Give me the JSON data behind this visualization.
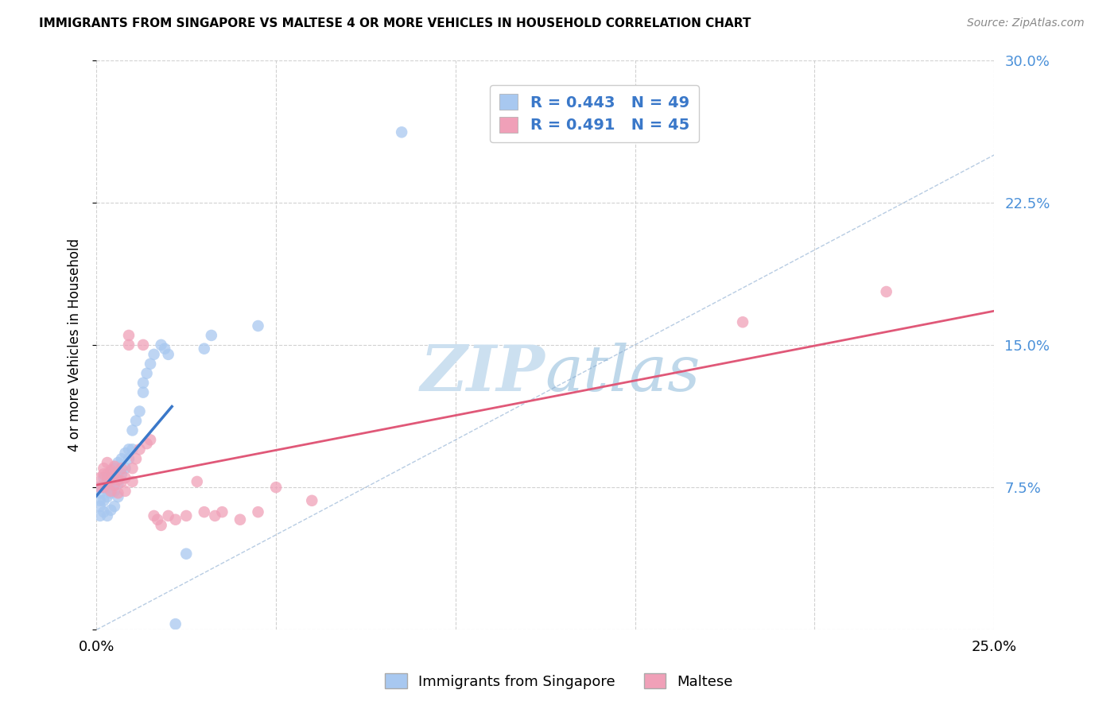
{
  "title": "IMMIGRANTS FROM SINGAPORE VS MALTESE 4 OR MORE VEHICLES IN HOUSEHOLD CORRELATION CHART",
  "source": "Source: ZipAtlas.com",
  "ylabel": "4 or more Vehicles in Household",
  "xlim": [
    0.0,
    0.25
  ],
  "ylim": [
    0.0,
    0.3
  ],
  "legend_labels": [
    "Immigrants from Singapore",
    "Maltese"
  ],
  "R_singapore": 0.443,
  "N_singapore": 49,
  "R_maltese": 0.491,
  "N_maltese": 45,
  "color_singapore": "#a8c8f0",
  "color_maltese": "#f0a0b8",
  "line_color_singapore": "#3a78c9",
  "line_color_maltese": "#e05878",
  "watermark_zip_color": "#c8dff0",
  "watermark_atlas_color": "#b0cce0",
  "sg_x": [
    0.001,
    0.001,
    0.001,
    0.001,
    0.001,
    0.002,
    0.002,
    0.002,
    0.002,
    0.003,
    0.003,
    0.003,
    0.003,
    0.004,
    0.004,
    0.004,
    0.004,
    0.005,
    0.005,
    0.005,
    0.005,
    0.006,
    0.006,
    0.006,
    0.006,
    0.007,
    0.007,
    0.008,
    0.008,
    0.009,
    0.009,
    0.01,
    0.01,
    0.011,
    0.012,
    0.013,
    0.013,
    0.014,
    0.015,
    0.016,
    0.018,
    0.019,
    0.02,
    0.022,
    0.025,
    0.03,
    0.032,
    0.045,
    0.085
  ],
  "sg_y": [
    0.06,
    0.065,
    0.068,
    0.072,
    0.075,
    0.062,
    0.068,
    0.075,
    0.08,
    0.06,
    0.07,
    0.075,
    0.08,
    0.063,
    0.072,
    0.078,
    0.083,
    0.065,
    0.073,
    0.079,
    0.085,
    0.07,
    0.077,
    0.082,
    0.088,
    0.082,
    0.09,
    0.085,
    0.093,
    0.09,
    0.095,
    0.095,
    0.105,
    0.11,
    0.115,
    0.125,
    0.13,
    0.135,
    0.14,
    0.145,
    0.15,
    0.148,
    0.145,
    0.003,
    0.04,
    0.148,
    0.155,
    0.16,
    0.262
  ],
  "mt_x": [
    0.001,
    0.001,
    0.002,
    0.002,
    0.002,
    0.003,
    0.003,
    0.003,
    0.004,
    0.004,
    0.004,
    0.005,
    0.005,
    0.005,
    0.006,
    0.006,
    0.007,
    0.007,
    0.008,
    0.008,
    0.009,
    0.009,
    0.01,
    0.01,
    0.011,
    0.012,
    0.013,
    0.014,
    0.015,
    0.016,
    0.017,
    0.018,
    0.02,
    0.022,
    0.025,
    0.028,
    0.03,
    0.033,
    0.035,
    0.04,
    0.045,
    0.05,
    0.06,
    0.18,
    0.22
  ],
  "mt_y": [
    0.075,
    0.08,
    0.075,
    0.082,
    0.085,
    0.078,
    0.082,
    0.088,
    0.073,
    0.079,
    0.084,
    0.076,
    0.081,
    0.086,
    0.072,
    0.079,
    0.078,
    0.085,
    0.073,
    0.08,
    0.15,
    0.155,
    0.078,
    0.085,
    0.09,
    0.095,
    0.15,
    0.098,
    0.1,
    0.06,
    0.058,
    0.055,
    0.06,
    0.058,
    0.06,
    0.078,
    0.062,
    0.06,
    0.062,
    0.058,
    0.062,
    0.075,
    0.068,
    0.162,
    0.178
  ]
}
